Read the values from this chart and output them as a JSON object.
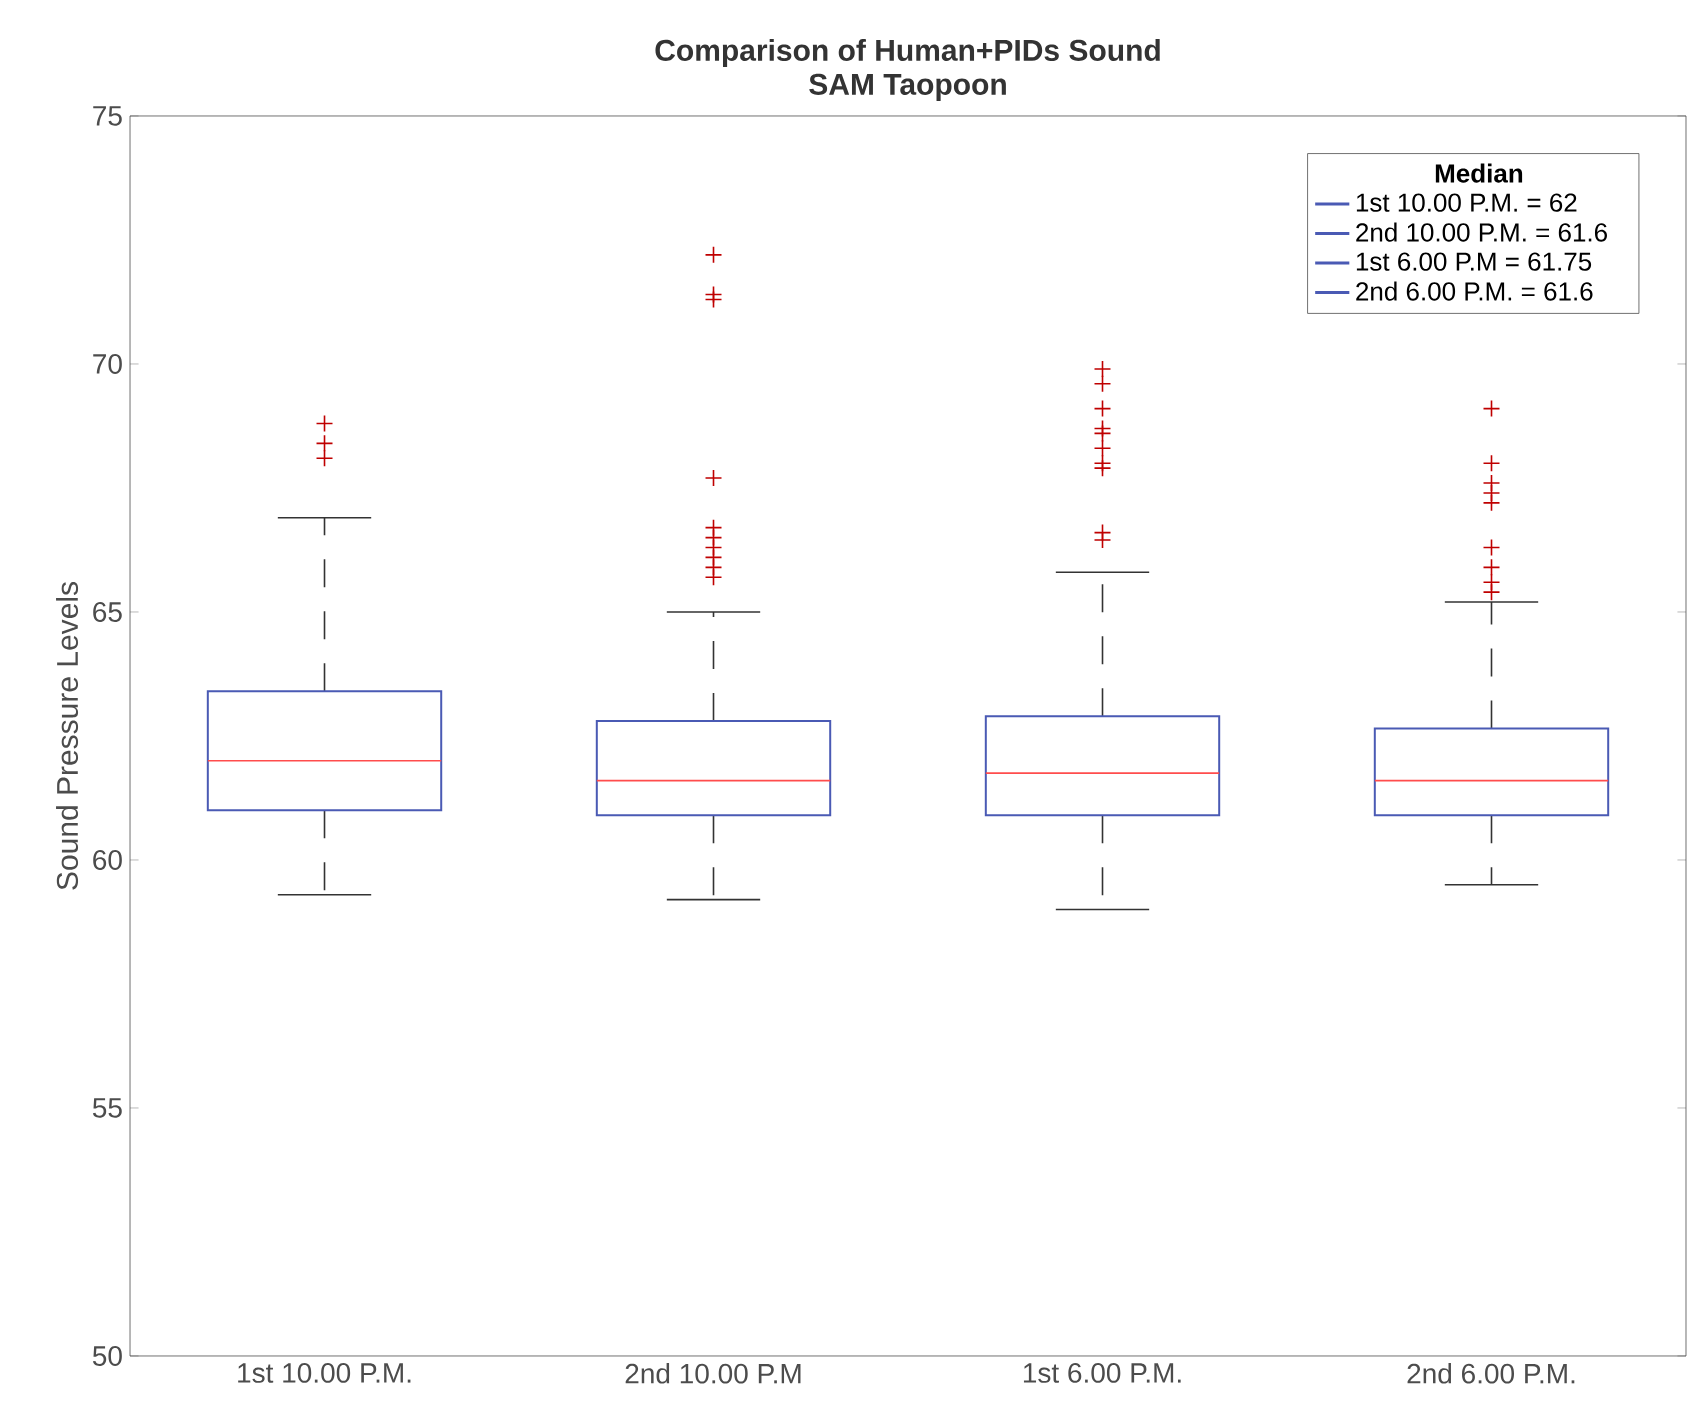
{
  "chart_data": {
    "type": "box",
    "title": "Comparison of Human+PIDs Sound",
    "subtitle": "SAM Taopoon",
    "ylabel": "Sound Pressure Levels",
    "categories": [
      "1st 10.00 P.M.",
      "2nd 10.00 P.M",
      "1st 6.00 P.M.",
      "2nd 6.00 P.M."
    ],
    "ylim": [
      50,
      75
    ],
    "yticks": [
      50,
      55,
      60,
      65,
      70,
      75
    ],
    "legend": "top right",
    "legend_title": "Median",
    "grid": false,
    "marker": "cross",
    "series": [
      {
        "name": "1st 10.00 P.M. = 62",
        "color": "#4a5ab4",
        "boxes": [
          {
            "low": 59.3,
            "q1": 61.0,
            "median": 62,
            "q3": 63.4,
            "high": 66.9,
            "outliers": [
              68.1,
              68.4,
              68.8
            ]
          },
          null,
          null,
          null
        ]
      },
      {
        "name": "2nd 10.00 P.M. = 61.6",
        "color": "#4a5ab4",
        "boxes": [
          null,
          {
            "low": 59.2,
            "q1": 60.9,
            "median": 61.6,
            "q3": 62.8,
            "high": 65.0,
            "outliers": [
              65.7,
              65.9,
              66.1,
              66.3,
              66.5,
              66.7,
              67.7,
              71.3,
              71.4,
              72.2
            ]
          },
          null,
          null
        ]
      },
      {
        "name": "1st 6.00 P.M = 61.75",
        "color": "#4a5ab4",
        "boxes": [
          null,
          null,
          {
            "low": 59.0,
            "q1": 60.9,
            "median": 61.75,
            "q3": 62.9,
            "high": 65.8,
            "outliers": [
              66.45,
              66.6,
              67.9,
              68.0,
              68.3,
              68.6,
              68.7,
              69.1,
              69.6,
              69.9
            ]
          },
          null
        ]
      },
      {
        "name": "2nd 6.00 P.M. = 61.6",
        "color": "#4a5ab4",
        "boxes": [
          null,
          null,
          null,
          {
            "low": 59.5,
            "q1": 60.9,
            "median": 61.6,
            "q3": 62.65,
            "high": 65.2,
            "outliers": [
              65.4,
              65.6,
              65.9,
              66.3,
              67.2,
              67.4,
              67.6,
              68.0,
              69.1
            ]
          }
        ]
      }
    ]
  }
}
